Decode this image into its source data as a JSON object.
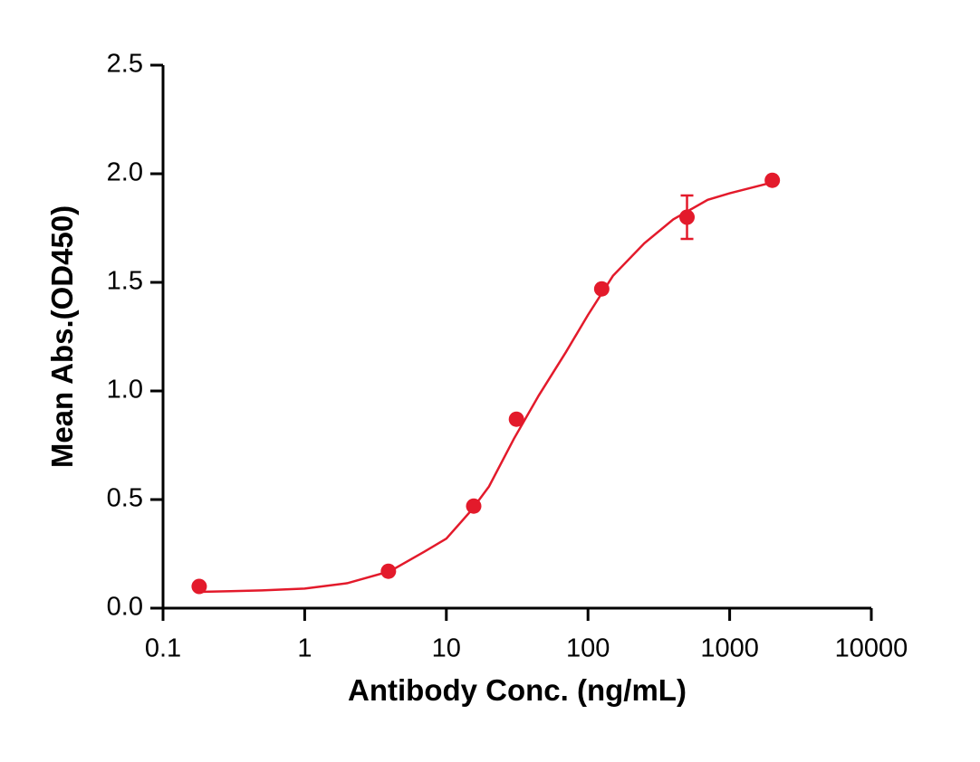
{
  "chart_data": {
    "type": "scatter",
    "x_label": "Antibody Conc. (ng/mL)",
    "y_label": "Mean Abs.(OD450)",
    "xscale": "log",
    "xlim": [
      0.1,
      10000
    ],
    "xticks": [
      0.1,
      1,
      10,
      100,
      1000,
      10000
    ],
    "ylim": [
      0,
      2.5
    ],
    "yticks": [
      {
        "value": 0,
        "label": "0.0"
      },
      0.5,
      {
        "value": 1,
        "label": "1.0"
      },
      1.5,
      {
        "value": 2,
        "label": "2.0"
      },
      2.5
    ],
    "series": [
      {
        "color": "#e31a2b",
        "x": [
          0.18,
          3.9,
          15.6,
          31.25,
          125,
          500,
          2000
        ],
        "values": [
          0.1,
          0.17,
          0.47,
          0.87,
          1.47,
          1.8,
          1.97
        ],
        "errors": [
          null,
          null,
          null,
          null,
          null,
          0.1,
          null
        ]
      }
    ],
    "fit": {
      "color": "#e31a2b",
      "x": [
        0.18,
        0.3,
        0.5,
        1,
        2,
        4,
        7,
        10,
        15,
        20,
        30,
        45,
        70,
        100,
        150,
        250,
        400,
        700,
        1000,
        2000
      ],
      "values": [
        0.075,
        0.078,
        0.082,
        0.09,
        0.115,
        0.17,
        0.26,
        0.32,
        0.45,
        0.56,
        0.78,
        0.98,
        1.18,
        1.35,
        1.53,
        1.68,
        1.79,
        1.88,
        1.91,
        1.96
      ]
    }
  }
}
